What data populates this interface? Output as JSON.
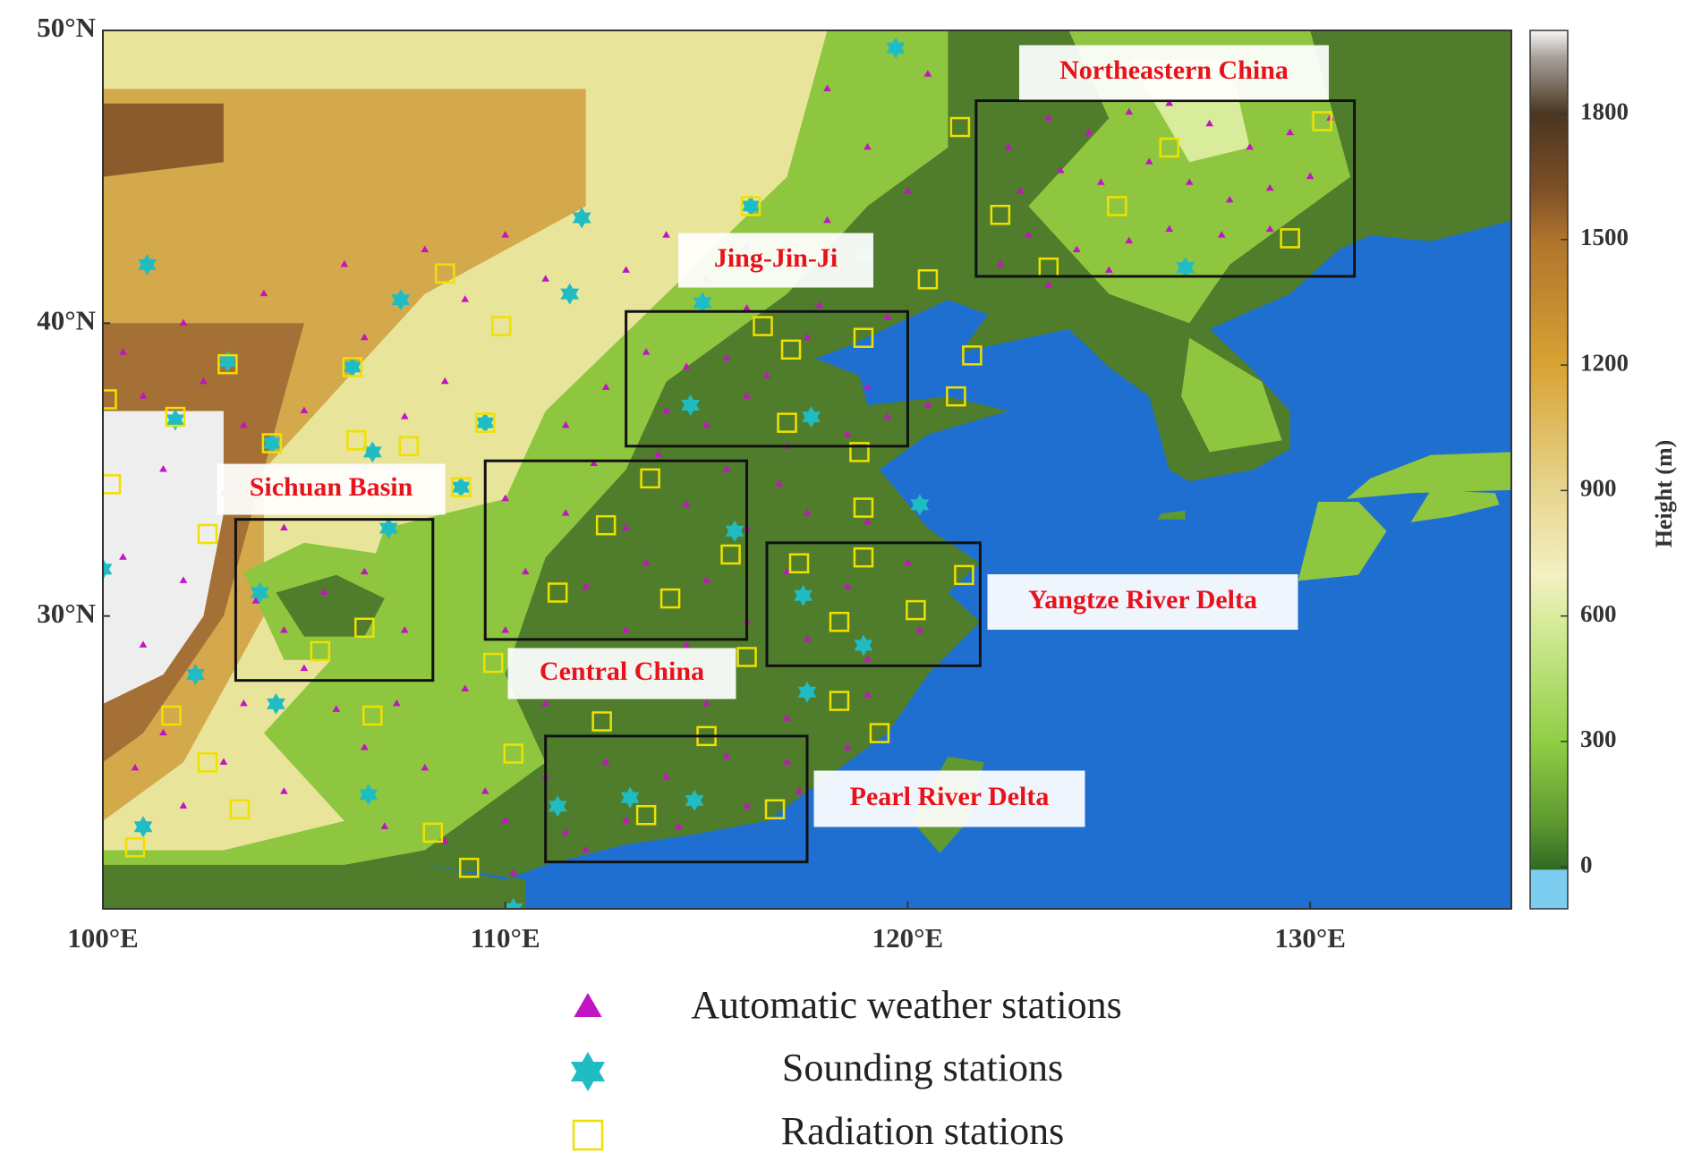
{
  "map": {
    "type": "map",
    "xlim": [
      100,
      135
    ],
    "ylim": [
      20,
      50
    ],
    "xticks": [
      {
        "value": 100,
        "label": "100°E"
      },
      {
        "value": 110,
        "label": "110°E"
      },
      {
        "value": 120,
        "label": "120°E"
      },
      {
        "value": 130,
        "label": "130°E"
      }
    ],
    "yticks": [
      {
        "value": 30,
        "label": "30°N"
      },
      {
        "value": 40,
        "label": "40°N"
      },
      {
        "value": 50,
        "label": "50°N"
      }
    ],
    "colorbar": {
      "title": "Height (m)",
      "lim": [
        -100,
        2000
      ],
      "ticks": [
        0,
        300,
        600,
        900,
        1200,
        1500,
        1800
      ]
    },
    "regions": [
      {
        "name": "Northeastern China",
        "lon": [
          121.7,
          131.1
        ],
        "lat": [
          41.6,
          47.6
        ]
      },
      {
        "name": "Jing-Jin-Ji",
        "lon": [
          113.0,
          120.0
        ],
        "lat": [
          35.8,
          40.4
        ]
      },
      {
        "name": "Sichuan Basin",
        "lon": [
          103.3,
          108.2
        ],
        "lat": [
          27.8,
          33.3
        ]
      },
      {
        "name": "Central China",
        "lon": [
          109.5,
          116.0
        ],
        "lat": [
          29.2,
          35.3
        ]
      },
      {
        "name": "Yangtze River Delta",
        "lon": [
          116.5,
          121.8
        ],
        "lat": [
          28.3,
          32.5
        ]
      },
      {
        "name": "Pearl River Delta",
        "lon": [
          111.0,
          117.5
        ],
        "lat": [
          21.6,
          25.9
        ]
      }
    ],
    "series": [
      {
        "name": "Automatic weather stations",
        "color": "#c214c2",
        "marker": "triangle",
        "lon": [
          122.5,
          123.5,
          124.5,
          125.5,
          126.5,
          127.5,
          128.5,
          129.5,
          130.5,
          122.8,
          123.8,
          124.8,
          126,
          127,
          128,
          129,
          130,
          123,
          124.2,
          125.5,
          126.5,
          127.8,
          129,
          122.3,
          123.5,
          125,
          106,
          108,
          110,
          112,
          114,
          116,
          118,
          120,
          119,
          118,
          120.5,
          109,
          111,
          113,
          115,
          104,
          102,
          113.5,
          114.5,
          115.5,
          116.5,
          117.5,
          114,
          115,
          116,
          117,
          118.5,
          119.5,
          113.8,
          115.5,
          116.8,
          112.5,
          111.5,
          112.2,
          119,
          120.5,
          116,
          117.8,
          119.5,
          110,
          111.5,
          113,
          114.5,
          116,
          117.5,
          119,
          110.5,
          112,
          113.5,
          115,
          117,
          118.5,
          120,
          110,
          111.5,
          113,
          114.5,
          116,
          117.5,
          119,
          120.3,
          109,
          111,
          113,
          115,
          117,
          119,
          106.5,
          108,
          109.5,
          111,
          112.5,
          114,
          115.5,
          117,
          118.5,
          107,
          108.5,
          110,
          111.5,
          113,
          114.3,
          116,
          117.3,
          110.2,
          112,
          101,
          102.5,
          103.5,
          101.5,
          103,
          105,
          106.5,
          100.5,
          102,
          101,
          103.8,
          104.5,
          105.5,
          106.5,
          105,
          107.5,
          103.5,
          101.5,
          103,
          104.5,
          102,
          100.8,
          105.8,
          107.3,
          100.5,
          108.5,
          107.5,
          104.5
        ],
        "lat": [
          46,
          47,
          46.5,
          47.2,
          47.5,
          46.8,
          46,
          46.5,
          47,
          44.5,
          45.2,
          44.8,
          45.5,
          44.8,
          44.2,
          44.6,
          45,
          43,
          42.5,
          42.8,
          43.2,
          43,
          43.2,
          42,
          41.3,
          41.8,
          42,
          42.5,
          43,
          43.5,
          43,
          42.6,
          43.5,
          44.5,
          46,
          48,
          48.5,
          40.8,
          41.5,
          41.8,
          41.5,
          41,
          40,
          39,
          38.5,
          38.8,
          38.2,
          39.5,
          37,
          36.5,
          37.5,
          35.8,
          36.2,
          36.8,
          35.5,
          35,
          34.5,
          37.8,
          36.5,
          35.2,
          37.8,
          37.2,
          40.5,
          40.6,
          40.2,
          34,
          33.5,
          33,
          33.8,
          33,
          33.5,
          33.2,
          31.5,
          31,
          31.8,
          31.2,
          31.5,
          31,
          31.8,
          29.5,
          28.8,
          29.5,
          29,
          29.8,
          29.2,
          28.5,
          29.5,
          27.5,
          27,
          27.5,
          27,
          26.5,
          27.3,
          25.5,
          24.8,
          24,
          24.5,
          25,
          24.5,
          25.2,
          25,
          25.5,
          22.8,
          22.3,
          23,
          22.6,
          23,
          22.8,
          23.5,
          24,
          21.2,
          22,
          37.5,
          38,
          36.5,
          35,
          34.2,
          37,
          39.5,
          32,
          31.2,
          29,
          30.5,
          29.5,
          30.8,
          31.5,
          28.2,
          29.5,
          27,
          26,
          25,
          24,
          23.5,
          24.8,
          26.8,
          27,
          39,
          38,
          36.8,
          33
        ]
      },
      {
        "name": "Sounding stations",
        "color": "#1fbcc4",
        "marker": "star",
        "lon": [
          119.7,
          111.9,
          116.1,
          101.1,
          111.6,
          107.4,
          118.9,
          114.9,
          126.9,
          103.1,
          106.2,
          101.8,
          109.5,
          104.2,
          106.7,
          108.9,
          114.6,
          117.6,
          107.1,
          100.0,
          103.9,
          115.7,
          117.4,
          120.3,
          118.9,
          102.3,
          104.3,
          117.5,
          106.6,
          101.0,
          111.3,
          113.1,
          114.7,
          110.2
        ],
        "lat": [
          49.4,
          43.6,
          44.0,
          42.0,
          41.0,
          40.8,
          42.3,
          40.7,
          41.9,
          38.7,
          38.5,
          36.7,
          36.6,
          35.9,
          35.6,
          34.4,
          37.2,
          36.8,
          33.0,
          31.6,
          30.8,
          32.9,
          30.7,
          33.8,
          29.0,
          28.0,
          27.0,
          27.4,
          23.9,
          22.8,
          23.5,
          23.8,
          23.7,
          20.0
        ]
      },
      {
        "name": "Radiation stations",
        "color": "#f0e000",
        "marker": "square",
        "lon": [
          121.3,
          130.3,
          126.5,
          122.3,
          125.2,
          129.5,
          123.5,
          116.1,
          120.5,
          108.5,
          109.9,
          116.4,
          118.9,
          117.1,
          121.6,
          121.2,
          117.0,
          100.1,
          103.1,
          106.2,
          101.8,
          109.5,
          106.3,
          107.6,
          104.2,
          118.8,
          113.6,
          100.2,
          102.6,
          112.5,
          115.6,
          118.9,
          117.3,
          118.9,
          121.4,
          111.3,
          114.1,
          120.2,
          106.5,
          118.3,
          105.4,
          108.9,
          116.0,
          109.7,
          101.7,
          106.7,
          112.4,
          115.0,
          118.3,
          119.3,
          110.2,
          102.6,
          103.4,
          108.2,
          113.5,
          116.7,
          100.8,
          109.1
        ],
        "lat": [
          46.7,
          46.9,
          46.0,
          43.7,
          44.0,
          42.9,
          41.9,
          44.0,
          41.5,
          41.7,
          39.9,
          39.9,
          39.5,
          39.1,
          38.9,
          37.5,
          36.6,
          37.4,
          38.6,
          38.5,
          36.8,
          36.6,
          36.0,
          35.8,
          35.9,
          35.6,
          34.7,
          34.5,
          32.8,
          33.1,
          32.1,
          33.7,
          31.8,
          32.0,
          31.4,
          30.8,
          30.6,
          30.2,
          29.6,
          29.8,
          28.8,
          34.4,
          28.6,
          28.4,
          26.6,
          26.6,
          26.4,
          25.9,
          27.1,
          26.0,
          25.3,
          25.0,
          23.4,
          22.6,
          23.2,
          23.4,
          22.1,
          21.4
        ]
      }
    ]
  }
}
